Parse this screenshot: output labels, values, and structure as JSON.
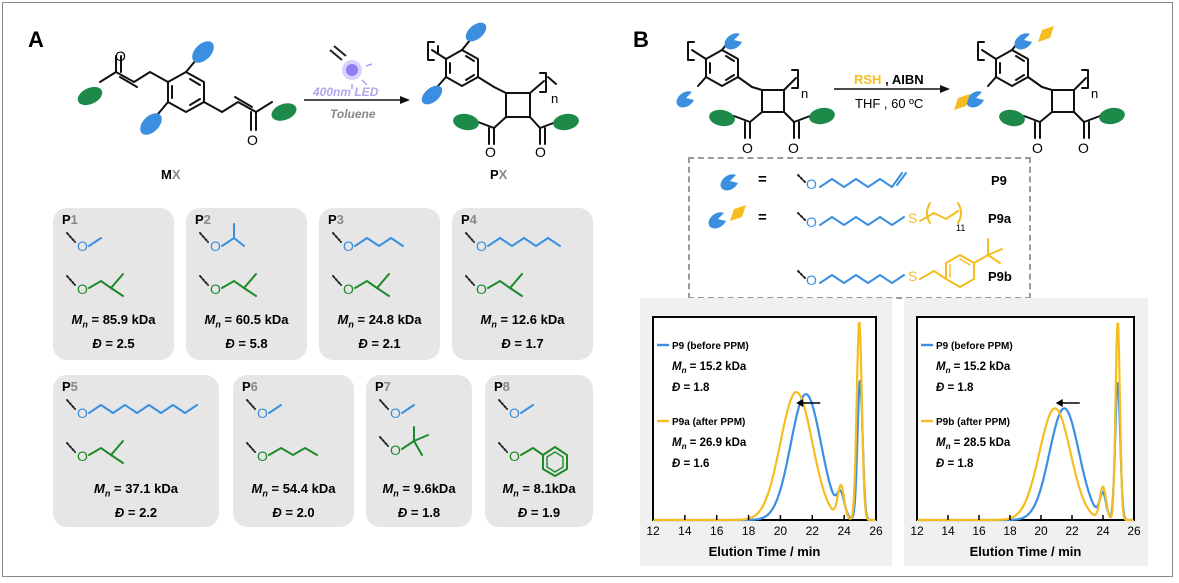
{
  "panel_a": {
    "letter": "A",
    "monomer_label": "M",
    "monomer_label_x": "X",
    "polymer_label": "P",
    "polymer_label_x": "X",
    "arrow_top": "400nm LED",
    "arrow_bottom": "Toluene",
    "subscript_n": "n",
    "carbonyl_o": "O",
    "cards": [
      {
        "p": "P",
        "num": "1",
        "mn_value": "= 85.9 kDa",
        "d_value": "= 2.5"
      },
      {
        "p": "P",
        "num": "2",
        "mn_value": "= 60.5 kDa",
        "d_value": "= 5.8"
      },
      {
        "p": "P",
        "num": "3",
        "mn_value": "= 24.8 kDa",
        "d_value": "= 2.1"
      },
      {
        "p": "P",
        "num": "4",
        "mn_value": "= 12.6 kDa",
        "d_value": "= 1.7"
      },
      {
        "p": "P",
        "num": "5",
        "mn_value": "= 37.1 kDa",
        "d_value": "= 2.2"
      },
      {
        "p": "P",
        "num": "6",
        "mn_value": "= 54.4 kDa",
        "d_value": "= 2.0"
      },
      {
        "p": "P",
        "num": "7",
        "mn_value": "=  9.6kDa",
        "d_value": "= 1.8"
      },
      {
        "p": "P",
        "num": "8",
        "mn_value": "=  8.1kDa",
        "d_value": "= 1.9"
      }
    ],
    "mn_symbol": "M",
    "mn_sub": "n",
    "d_symbol": "Đ"
  },
  "panel_b": {
    "letter": "B",
    "reagent_rsh": "RSH",
    "reagent_rest": ", AIBN",
    "conditions": "THF , 60 ºC",
    "subscript_n": "n",
    "carbonyl_o": "O",
    "equals": "=",
    "legend": [
      {
        "label": "P9"
      },
      {
        "label": "P9a",
        "subscript": "11",
        "sulfur": "S"
      },
      {
        "label": "P9b",
        "sulfur": "S"
      }
    ],
    "ether_o": "O",
    "colors": {
      "blue": "#3b8fe0",
      "yellow": "#f5bd1f",
      "green": "#1d8a2a"
    }
  },
  "chart_data": [
    {
      "type": "line",
      "xlabel": "Elution Time / min",
      "xlim": [
        12,
        26
      ],
      "x_ticks": [
        "12",
        "14",
        "16",
        "18",
        "20",
        "22",
        "24",
        "26"
      ],
      "series": [
        {
          "name": "P9 (before PPM)",
          "mn_value": "= 15.2 kDa",
          "d_value": "= 1.8",
          "color": "#3b8fe0",
          "peaks": [
            {
              "center": 21.6,
              "sigma": 0.95,
              "height": 0.62
            },
            {
              "center": 23.8,
              "sigma": 0.22,
              "height": 0.1
            },
            {
              "center": 25.0,
              "sigma": 0.16,
              "height": 0.69
            }
          ]
        },
        {
          "name": "P9a (after PPM)",
          "mn_value": "= 26.9 kDa",
          "d_value": "= 1.6",
          "color": "#f5bd1f",
          "peaks": [
            {
              "center": 21.0,
              "sigma": 1.0,
              "height": 0.63
            },
            {
              "center": 23.8,
              "sigma": 0.2,
              "height": 0.16
            },
            {
              "center": 24.95,
              "sigma": 0.16,
              "height": 0.98
            }
          ]
        }
      ]
    },
    {
      "type": "line",
      "xlabel": "Elution Time / min",
      "xlim": [
        12,
        26
      ],
      "x_ticks": [
        "12",
        "14",
        "16",
        "18",
        "20",
        "22",
        "24",
        "26"
      ],
      "series": [
        {
          "name": "P9 (before PPM)",
          "mn_value": "= 15.2 kDa",
          "d_value": "= 1.8",
          "color": "#3b8fe0",
          "peaks": [
            {
              "center": 21.5,
              "sigma": 0.95,
              "height": 0.55
            },
            {
              "center": 24.0,
              "sigma": 0.2,
              "height": 0.12
            },
            {
              "center": 24.95,
              "sigma": 0.16,
              "height": 0.68
            }
          ]
        },
        {
          "name": "P9b (after PPM)",
          "mn_value": "= 28.5 kDa",
          "d_value": "= 1.8",
          "color": "#f5bd1f",
          "peaks": [
            {
              "center": 20.9,
              "sigma": 1.0,
              "height": 0.55
            },
            {
              "center": 24.0,
              "sigma": 0.2,
              "height": 0.16
            },
            {
              "center": 24.95,
              "sigma": 0.14,
              "height": 0.98
            }
          ]
        }
      ]
    }
  ]
}
